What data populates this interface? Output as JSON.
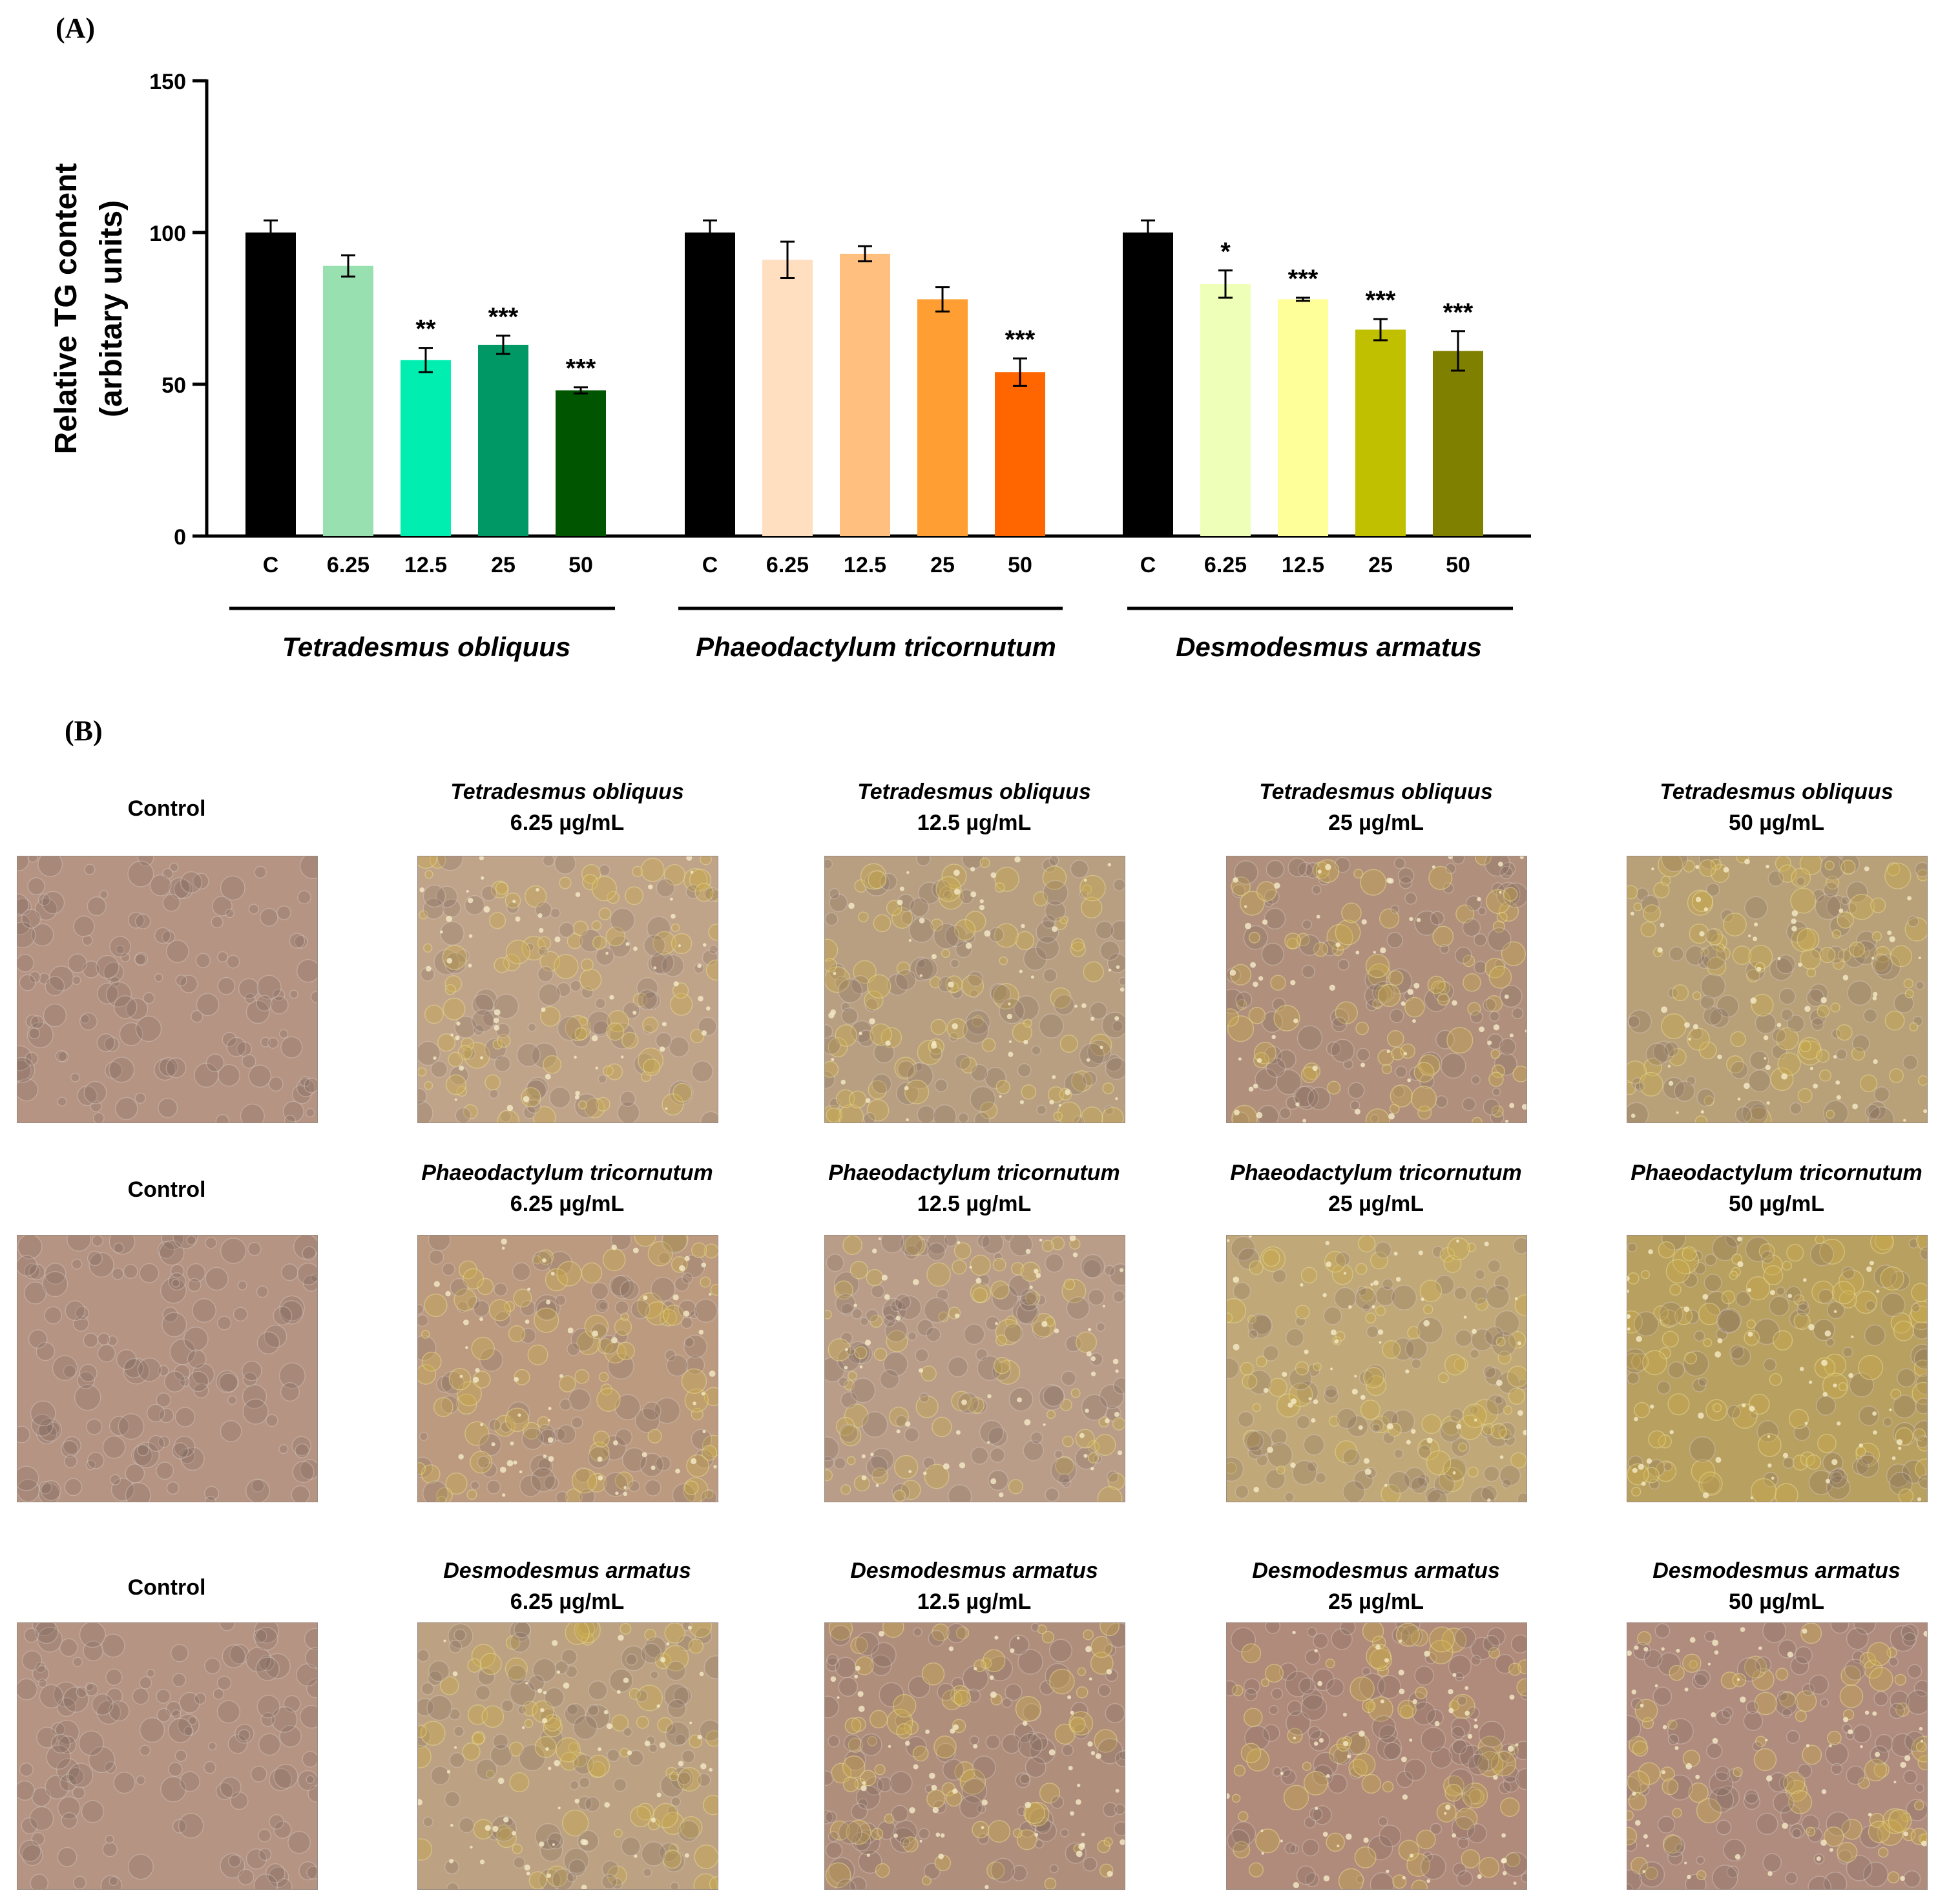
{
  "panel_a_label": "(A)",
  "panel_b_label": "(B)",
  "chart_data": {
    "type": "bar",
    "title": "",
    "ylabel_line1": "Relative TG content",
    "ylabel_line2": "(arbitary units)",
    "ylim": [
      0,
      150
    ],
    "yticks": [
      "0",
      "50",
      "100",
      "150"
    ],
    "groups": [
      {
        "name": "Tetradesmus obliquus",
        "categories": [
          "C",
          "6.25",
          "12.5",
          "25",
          "50"
        ],
        "values": [
          100,
          89,
          58,
          63,
          48
        ],
        "errors": [
          4,
          3.5,
          4,
          3,
          1
        ],
        "significance": [
          "",
          "",
          "**",
          "***",
          "***"
        ],
        "colors": [
          "#000000",
          "#99e0b0",
          "#00eeb0",
          "#009966",
          "#005500"
        ]
      },
      {
        "name": "Phaeodactylum tricornutum",
        "categories": [
          "C",
          "6.25",
          "12.5",
          "25",
          "50"
        ],
        "values": [
          100,
          91,
          93,
          78,
          54
        ],
        "errors": [
          4,
          6,
          2.5,
          4,
          4.5
        ],
        "significance": [
          "",
          "",
          "",
          "",
          "***"
        ],
        "colors": [
          "#000000",
          "#ffdfc0",
          "#ffbf7f",
          "#ff9f33",
          "#ff6600"
        ]
      },
      {
        "name": "Desmodesmus armatus",
        "categories": [
          "C",
          "6.25",
          "12.5",
          "25",
          "50"
        ],
        "values": [
          100,
          83,
          78,
          68,
          61
        ],
        "errors": [
          4,
          4.5,
          0.5,
          3.5,
          6.5
        ],
        "significance": [
          "",
          "*",
          "***",
          "***",
          "***"
        ],
        "colors": [
          "#000000",
          "#eeffb8",
          "#ffff99",
          "#c0c000",
          "#808000"
        ]
      }
    ]
  },
  "micrographs": {
    "rows": [
      {
        "control_label": "Control",
        "species": "Tetradesmus obliquus",
        "concentrations": [
          "6.25 µg/mL",
          "12.5 µg/mL",
          "25 µg/mL",
          "50 µg/mL"
        ]
      },
      {
        "control_label": "Control",
        "species": "Phaeodactylum tricornutum",
        "concentrations": [
          "6.25 µg/mL",
          "12.5 µg/mL",
          "25 µg/mL",
          "50 µg/mL"
        ]
      },
      {
        "control_label": "Control",
        "species": "Desmodesmus armatus",
        "concentrations": [
          "6.25 µg/mL",
          "12.5 µg/mL",
          "25 µg/mL",
          "50 µg/mL"
        ]
      }
    ]
  }
}
